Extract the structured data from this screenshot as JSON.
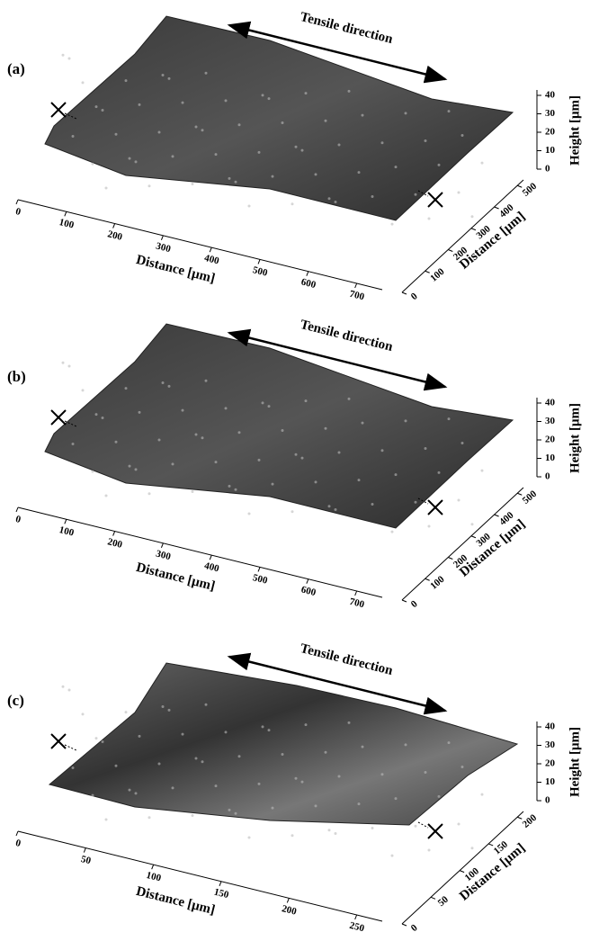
{
  "panels": [
    {
      "label": "(a)",
      "direction": "Tensile direction",
      "x_label": "Distance [μm]",
      "x_ticks": [
        0,
        100,
        200,
        300,
        400,
        500,
        600,
        700
      ],
      "y_label": "Distance [μm]",
      "y_ticks": [
        0,
        100,
        200,
        300,
        400,
        500
      ],
      "z_label": "Height [μm]",
      "z_ticks": [
        0,
        10,
        20,
        30,
        40
      ]
    },
    {
      "label": "(b)",
      "direction": "Tensile direction",
      "x_label": "Distance [μm]",
      "x_ticks": [
        0,
        100,
        200,
        300,
        400,
        500,
        600,
        700
      ],
      "y_label": "Distance [μm]",
      "y_ticks": [
        0,
        100,
        200,
        300,
        400,
        500
      ],
      "z_label": "Height [μm]",
      "z_ticks": [
        0,
        10,
        20,
        30,
        40
      ]
    },
    {
      "label": "(c)",
      "direction": "Tensile direction",
      "x_label": "Distance [μm]",
      "x_ticks": [
        0,
        50,
        100,
        150,
        200,
        250
      ],
      "y_label": "Distance [μm]",
      "y_ticks": [
        0,
        50,
        100,
        150,
        200
      ],
      "z_label": "Height [μm]",
      "z_ticks": [
        0,
        10,
        20,
        30,
        40
      ]
    }
  ]
}
